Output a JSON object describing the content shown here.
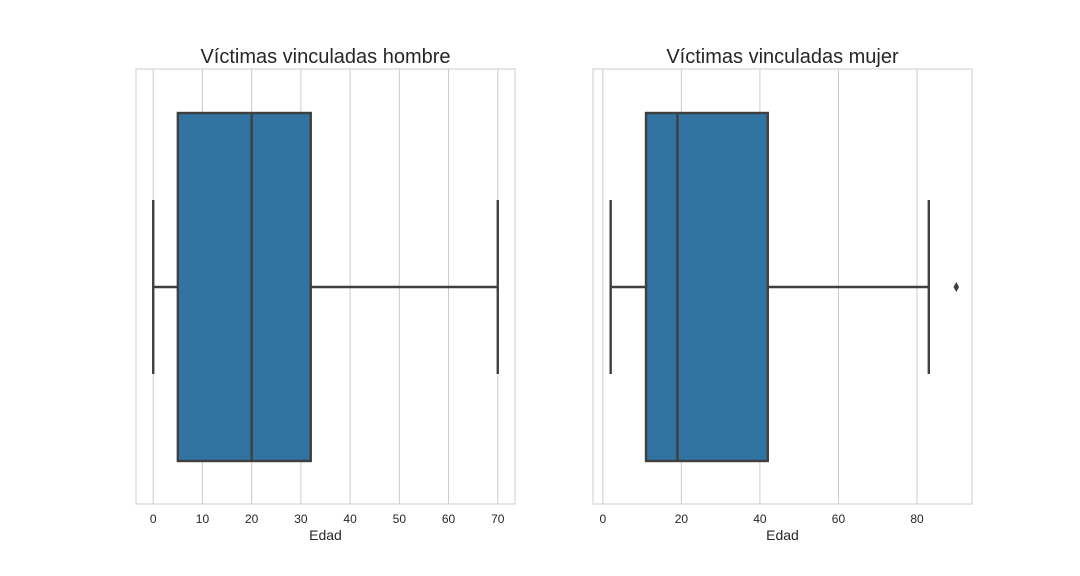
{
  "chart_data": [
    {
      "type": "box",
      "title": "Víctimas vinculadas hombre",
      "xlabel": "Edad",
      "ylabel": "",
      "xlim": [
        -3.5,
        73.5
      ],
      "xticks": [
        0,
        10,
        20,
        30,
        40,
        50,
        60,
        70
      ],
      "grid": true,
      "box": {
        "min": 0,
        "q1": 5,
        "median": 20,
        "q3": 32,
        "max": 70,
        "outliers": []
      },
      "color": "#3274a1"
    },
    {
      "type": "box",
      "title": "Víctimas vinculadas mujer",
      "xlabel": "Edad",
      "ylabel": "",
      "xlim": [
        -2.5,
        94
      ],
      "xticks": [
        0,
        20,
        40,
        60,
        80
      ],
      "grid": true,
      "box": {
        "min": 2,
        "q1": 11,
        "median": 19,
        "q3": 42,
        "max": 83,
        "outliers": [
          90
        ]
      },
      "color": "#3274a1"
    }
  ]
}
